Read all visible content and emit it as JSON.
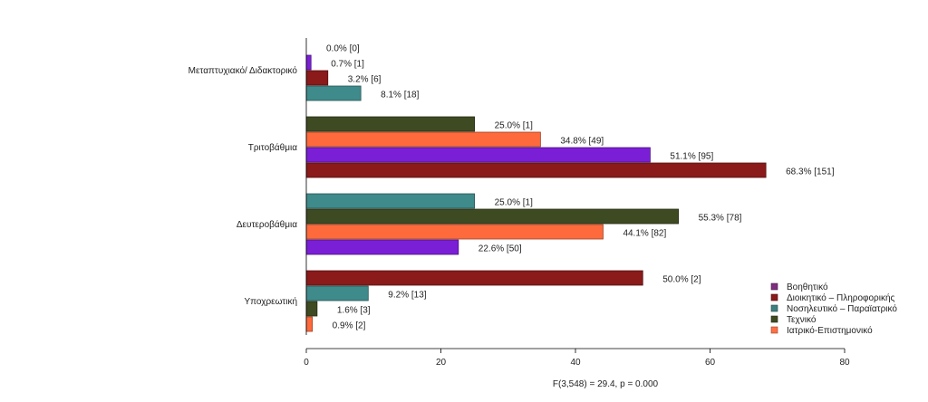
{
  "chart_data": {
    "type": "bar",
    "orientation": "horizontal",
    "title": "",
    "xlabel": "",
    "ylabel": "",
    "xlim": [
      0,
      80
    ],
    "x_ticks": [
      0,
      20,
      40,
      60,
      80
    ],
    "grid": false,
    "legend_placement": "bottom-right",
    "footnote": "F(3,548) = 29.4,   p = 0.000",
    "legend": [
      {
        "name": "Βοηθητικό",
        "color": "#7e2f7e"
      },
      {
        "name": "Διοικητικό – Πληροφορικής",
        "color": "#8b1a1a"
      },
      {
        "name": "Νοσηλευτικό – Παραϊατρικό",
        "color": "#3f7f7f"
      },
      {
        "name": "Τεχνικό",
        "color": "#3e4a22"
      },
      {
        "name": "Ιατρικό-Επιστημονικό",
        "color": "#ff7043"
      }
    ],
    "categories": [
      {
        "label": "Μεταπτυχιακό/ Διδακτορικό",
        "bars": [
          {
            "value": 0.0,
            "color": "#7a1fd6",
            "text": "0.0% [0]"
          },
          {
            "value": 0.7,
            "color": "#7a1fd6",
            "text": "0.7% [1]"
          },
          {
            "value": 3.2,
            "color": "#8b1a1a",
            "text": "3.2% [6]"
          },
          {
            "value": 8.1,
            "color": "#3f8a8a",
            "text": "8.1% [18]"
          }
        ]
      },
      {
        "label": "Τριτοβάθμια",
        "bars": [
          {
            "value": 25.0,
            "color": "#3e4a22",
            "text": "25.0% [1]"
          },
          {
            "value": 34.8,
            "color": "#ff6a3c",
            "text": "34.8% [49]"
          },
          {
            "value": 51.1,
            "color": "#7a1fd6",
            "text": "51.1% [95]"
          },
          {
            "value": 68.3,
            "color": "#8b1a1a",
            "text": "68.3% [151]"
          }
        ]
      },
      {
        "label": "Δευτεροβάθμια",
        "bars": [
          {
            "value": 25.0,
            "color": "#3f8a8a",
            "text": "25.0% [1]"
          },
          {
            "value": 55.3,
            "color": "#3e4a22",
            "text": "55.3% [78]"
          },
          {
            "value": 44.1,
            "color": "#ff6a3c",
            "text": "44.1% [82]"
          },
          {
            "value": 22.6,
            "color": "#7a1fd6",
            "text": "22.6% [50]"
          }
        ]
      },
      {
        "label": "Υποχρεωτική",
        "bars": [
          {
            "value": 50.0,
            "color": "#8b1a1a",
            "text": "50.0% [2]"
          },
          {
            "value": 9.2,
            "color": "#3f8a8a",
            "text": "9.2% [13]"
          },
          {
            "value": 1.6,
            "color": "#3e4a22",
            "text": "1.6% [3]"
          },
          {
            "value": 0.9,
            "color": "#ff6a3c",
            "text": "0.9% [2]"
          }
        ]
      }
    ]
  }
}
